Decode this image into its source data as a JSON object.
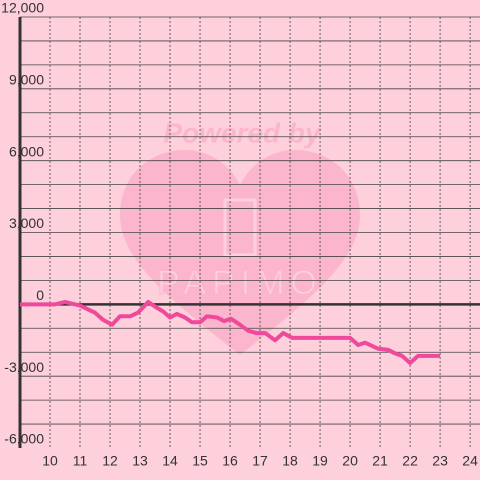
{
  "chart_data": {
    "type": "line",
    "watermark": {
      "title": "Powered by",
      "brand": "PAPIMO"
    },
    "x": [
      9,
      10.17,
      10.5,
      11,
      11.5,
      11.77,
      12.07,
      12.33,
      12.67,
      12.93,
      13.27,
      13.57,
      13.77,
      14,
      14.23,
      14.5,
      14.73,
      15,
      15.23,
      15.57,
      15.8,
      16.03,
      16.33,
      16.6,
      16.87,
      17.17,
      17.5,
      17.77,
      18.07,
      20,
      20.27,
      20.5,
      20.93,
      21.27,
      21.5,
      21.73,
      22,
      22.27,
      22.67,
      23
    ],
    "series": [
      {
        "color": "#f0489a",
        "values": [
          0,
          0,
          100,
          -50,
          -350,
          -650,
          -850,
          -500,
          -500,
          -350,
          100,
          -150,
          -300,
          -550,
          -400,
          -550,
          -750,
          -750,
          -500,
          -550,
          -700,
          -600,
          -850,
          -1100,
          -1200,
          -1200,
          -1500,
          -1200,
          -1400,
          -1400,
          -1700,
          -1600,
          -1850,
          -1900,
          -2050,
          -2150,
          -2450,
          -2150,
          -2150,
          -2150
        ]
      }
    ],
    "xlim": [
      9,
      24.33
    ],
    "xticks": [
      10,
      11,
      12,
      13,
      14,
      15,
      16,
      17,
      18,
      19,
      20,
      21,
      22,
      23,
      24
    ],
    "ylim": [
      -6000,
      12000
    ],
    "yticks": [
      {
        "value": 12000,
        "label": "12,000"
      },
      {
        "value": 9000,
        "label": "9,000"
      },
      {
        "value": 6000,
        "label": "6,000"
      },
      {
        "value": 3000,
        "label": "3,000"
      },
      0,
      {
        "value": -3000,
        "label": "-3,000"
      },
      {
        "value": -6000,
        "label": "-6,000"
      }
    ],
    "y_gridlines": [
      -5000,
      -4000,
      -3000,
      -2000,
      -1000,
      1000,
      2000,
      3000,
      4000,
      5000,
      6000,
      7000,
      8000,
      9000,
      10000,
      11000,
      12000
    ],
    "grid": true
  }
}
